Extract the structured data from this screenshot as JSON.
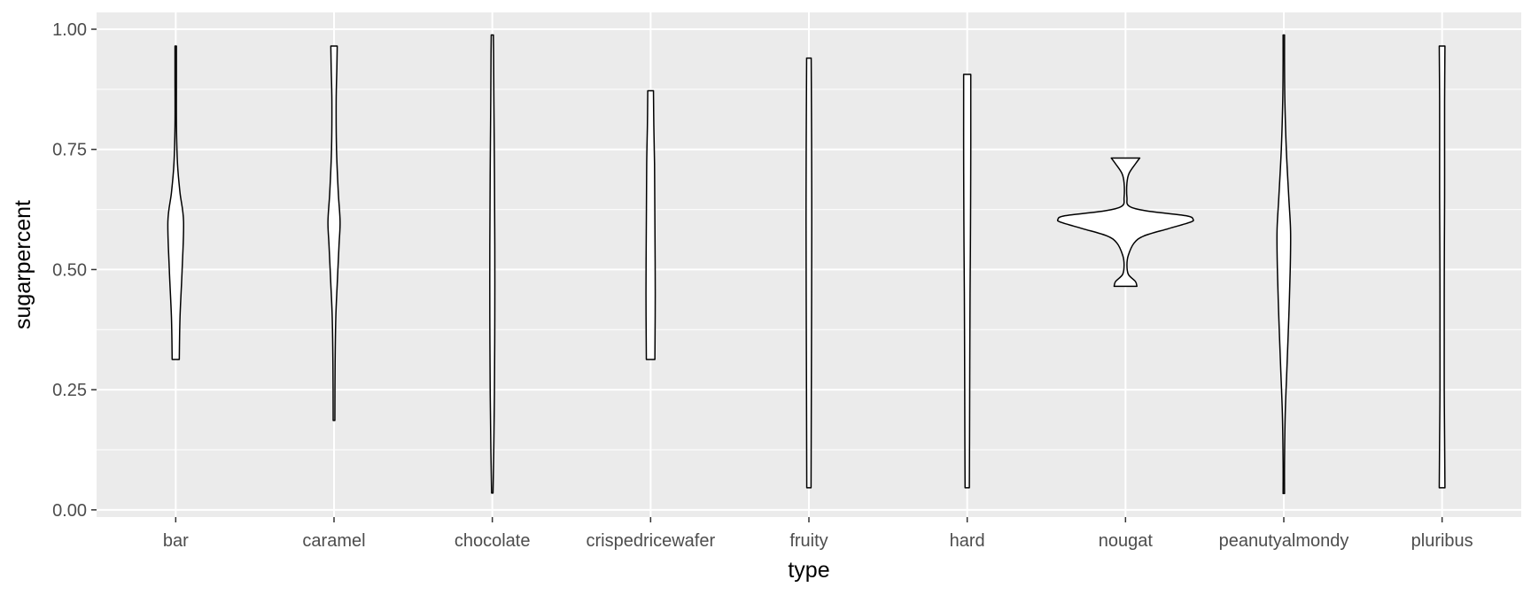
{
  "chart_data": {
    "type": "violin",
    "xlabel": "type",
    "ylabel": "sugarpercent",
    "categories": [
      "bar",
      "caramel",
      "chocolate",
      "crispedricewafer",
      "fruity",
      "hard",
      "nougat",
      "peanutyalmondy",
      "pluribus"
    ],
    "y_ticks": [
      "0.00",
      "0.25",
      "0.50",
      "0.75",
      "1.00"
    ],
    "y_tick_values": [
      0,
      0.25,
      0.5,
      0.75,
      1.0
    ],
    "ylim": [
      -0.015,
      1.035
    ],
    "grid": true,
    "colors": {
      "panel": "#ebebeb",
      "grid": "#ffffff",
      "violin_fill": "#ffffff",
      "violin_stroke": "#000000",
      "tick_text": "#4d4d4d",
      "tick_mark": "#333333"
    },
    "violins": [
      {
        "category": "bar",
        "profile": [
          [
            0.313,
            0.05
          ],
          [
            0.4,
            0.06
          ],
          [
            0.5,
            0.09
          ],
          [
            0.6,
            0.11
          ],
          [
            0.66,
            0.06
          ],
          [
            0.72,
            0.025
          ],
          [
            0.8,
            0.01
          ],
          [
            0.9,
            0.005
          ],
          [
            0.965,
            0.004
          ]
        ]
      },
      {
        "category": "caramel",
        "profile": [
          [
            0.186,
            0.012
          ],
          [
            0.3,
            0.015
          ],
          [
            0.4,
            0.025
          ],
          [
            0.47,
            0.045
          ],
          [
            0.55,
            0.07
          ],
          [
            0.6,
            0.085
          ],
          [
            0.66,
            0.06
          ],
          [
            0.75,
            0.035
          ],
          [
            0.85,
            0.03
          ],
          [
            0.92,
            0.04
          ],
          [
            0.965,
            0.045
          ]
        ]
      },
      {
        "category": "chocolate",
        "profile": [
          [
            0.035,
            0.01
          ],
          [
            0.12,
            0.02
          ],
          [
            0.25,
            0.03
          ],
          [
            0.4,
            0.035
          ],
          [
            0.55,
            0.035
          ],
          [
            0.7,
            0.03
          ],
          [
            0.85,
            0.022
          ],
          [
            0.95,
            0.018
          ],
          [
            0.988,
            0.015
          ]
        ]
      },
      {
        "category": "crispedricewafer",
        "profile": [
          [
            0.313,
            0.06
          ],
          [
            0.45,
            0.065
          ],
          [
            0.6,
            0.06
          ],
          [
            0.72,
            0.055
          ],
          [
            0.8,
            0.045
          ],
          [
            0.872,
            0.04
          ]
        ]
      },
      {
        "category": "fruity",
        "profile": [
          [
            0.046,
            0.03
          ],
          [
            0.15,
            0.032
          ],
          [
            0.3,
            0.035
          ],
          [
            0.45,
            0.038
          ],
          [
            0.6,
            0.04
          ],
          [
            0.75,
            0.038
          ],
          [
            0.85,
            0.035
          ],
          [
            0.94,
            0.032
          ]
        ]
      },
      {
        "category": "hard",
        "profile": [
          [
            0.046,
            0.03
          ],
          [
            0.15,
            0.033
          ],
          [
            0.3,
            0.036
          ],
          [
            0.45,
            0.04
          ],
          [
            0.55,
            0.045
          ],
          [
            0.65,
            0.048
          ],
          [
            0.75,
            0.05
          ],
          [
            0.85,
            0.05
          ],
          [
            0.906,
            0.05
          ]
        ]
      },
      {
        "category": "nougat",
        "profile": [
          [
            0.465,
            0.16
          ],
          [
            0.475,
            0.14
          ],
          [
            0.49,
            0.04
          ],
          [
            0.51,
            0.02
          ],
          [
            0.53,
            0.04
          ],
          [
            0.555,
            0.12
          ],
          [
            0.57,
            0.26
          ],
          [
            0.585,
            0.6
          ],
          [
            0.598,
            0.9
          ],
          [
            0.604,
            0.95
          ],
          [
            0.612,
            0.85
          ],
          [
            0.622,
            0.3
          ],
          [
            0.632,
            0.05
          ],
          [
            0.65,
            0.02
          ],
          [
            0.68,
            0.02
          ],
          [
            0.7,
            0.05
          ],
          [
            0.72,
            0.14
          ],
          [
            0.732,
            0.2
          ]
        ]
      },
      {
        "category": "peanutyalmondy",
        "profile": [
          [
            0.034,
            0.004
          ],
          [
            0.1,
            0.008
          ],
          [
            0.2,
            0.02
          ],
          [
            0.3,
            0.045
          ],
          [
            0.4,
            0.07
          ],
          [
            0.5,
            0.09
          ],
          [
            0.58,
            0.095
          ],
          [
            0.65,
            0.07
          ],
          [
            0.75,
            0.035
          ],
          [
            0.85,
            0.015
          ],
          [
            0.93,
            0.008
          ],
          [
            0.988,
            0.005
          ]
        ]
      },
      {
        "category": "pluribus",
        "profile": [
          [
            0.046,
            0.04
          ],
          [
            0.15,
            0.035
          ],
          [
            0.25,
            0.03
          ],
          [
            0.35,
            0.03
          ],
          [
            0.45,
            0.03
          ],
          [
            0.55,
            0.032
          ],
          [
            0.65,
            0.035
          ],
          [
            0.75,
            0.035
          ],
          [
            0.85,
            0.035
          ],
          [
            0.965,
            0.04
          ]
        ]
      }
    ]
  }
}
